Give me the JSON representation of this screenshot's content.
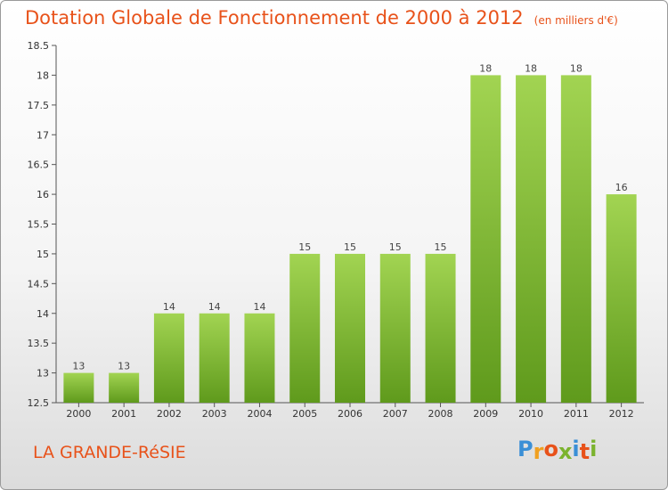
{
  "chart_data": {
    "type": "bar",
    "title": "Dotation Globale de Fonctionnement de 2000 à 2012",
    "subtitle": "(en milliers d'€)",
    "categories": [
      "2000",
      "2001",
      "2002",
      "2003",
      "2004",
      "2005",
      "2006",
      "2007",
      "2008",
      "2009",
      "2010",
      "2011",
      "2012"
    ],
    "values": [
      13,
      13,
      14,
      14,
      14,
      15,
      15,
      15,
      15,
      18,
      18,
      18,
      16
    ],
    "ylim": [
      12.5,
      18.5
    ],
    "yticks": [
      "12.5",
      "13",
      "13.5",
      "14",
      "14.5",
      "15",
      "15.5",
      "16",
      "16.5",
      "17",
      "17.5",
      "18",
      "18.5"
    ],
    "bar_color": "#7bb32e",
    "grid": false
  },
  "footer": {
    "commune": "LA GRANDE-RéSIE",
    "logo_letters": [
      "P",
      "r",
      "o",
      "x",
      "i",
      "t",
      "i"
    ],
    "logo_colors": [
      "#3a8fd6",
      "#f0a020",
      "#e8521a",
      "#7bb32e",
      "#3a8fd6",
      "#e8521a",
      "#7bb32e"
    ]
  }
}
